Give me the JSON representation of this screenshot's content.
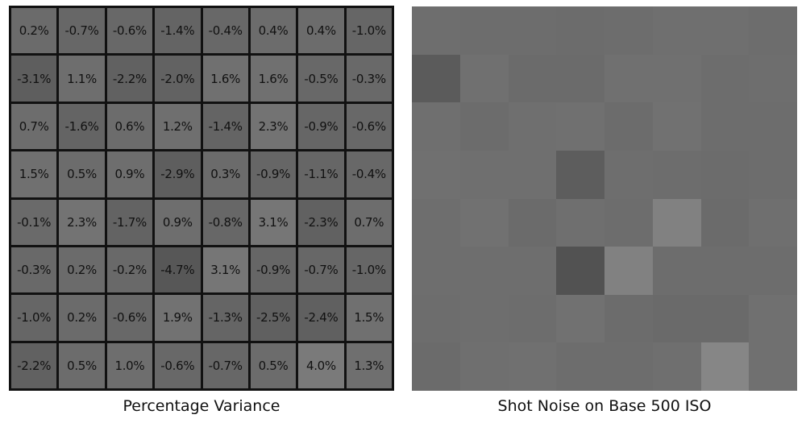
{
  "chart_data": {
    "type": "heatmap",
    "panels": [
      {
        "title": "Percentage Variance",
        "show_labels": true
      },
      {
        "title": "Shot Noise on Base 500 ISO",
        "show_labels": false
      }
    ],
    "unit": "%",
    "rows": 8,
    "cols": 8,
    "values": [
      [
        0.2,
        -0.7,
        -0.6,
        -1.4,
        -0.4,
        0.4,
        0.4,
        -1.0
      ],
      [
        -3.1,
        1.1,
        -2.2,
        -2.0,
        1.6,
        1.6,
        -0.5,
        -0.3
      ],
      [
        0.7,
        -1.6,
        0.6,
        1.2,
        -1.4,
        2.3,
        -0.9,
        -0.6
      ],
      [
        1.5,
        0.5,
        0.9,
        -2.9,
        0.3,
        -0.9,
        -1.1,
        -0.4
      ],
      [
        -0.1,
        2.3,
        -1.7,
        0.9,
        -0.8,
        3.1,
        -2.3,
        0.7
      ],
      [
        -0.3,
        0.2,
        -0.2,
        -4.7,
        3.1,
        -0.9,
        -0.7,
        -1.0
      ],
      [
        -1.0,
        0.2,
        -0.6,
        1.9,
        -1.3,
        -2.5,
        -2.4,
        1.5
      ],
      [
        -2.2,
        0.5,
        1.0,
        -0.6,
        -0.7,
        0.5,
        4.0,
        1.3
      ]
    ],
    "colors": {
      "border": "#111111",
      "text": "#111111"
    }
  }
}
